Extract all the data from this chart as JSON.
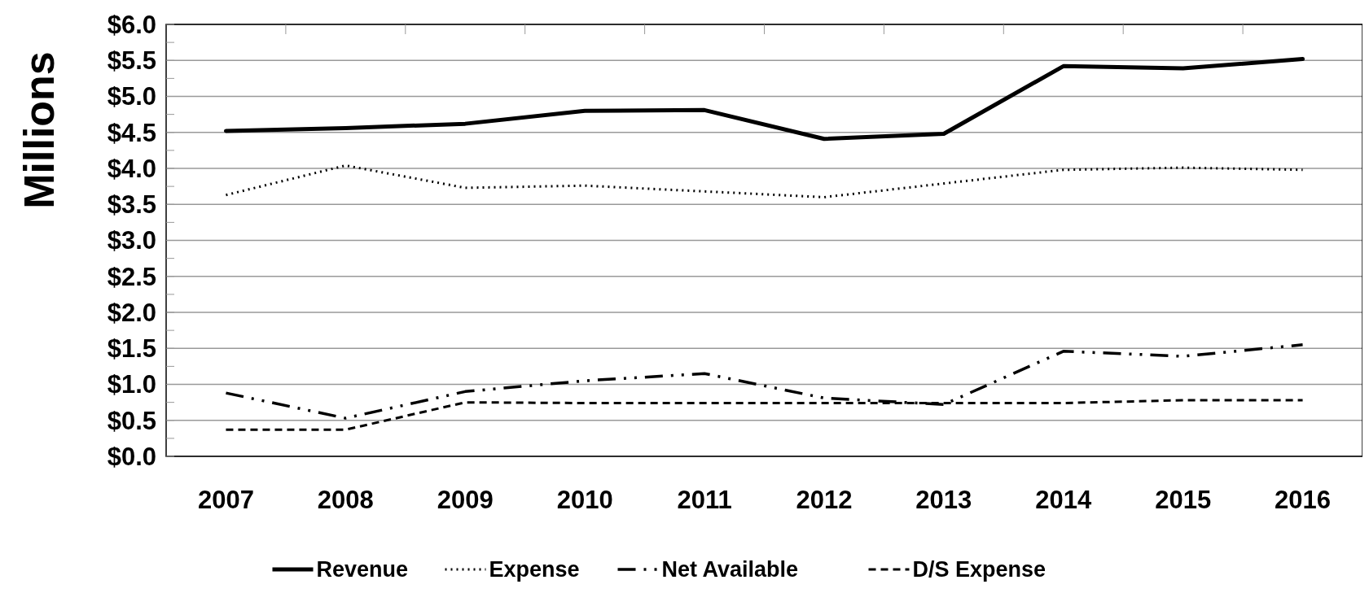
{
  "chart_data": {
    "type": "line",
    "ylabel": "Millions",
    "categories": [
      "2007",
      "2008",
      "2009",
      "2010",
      "2011",
      "2012",
      "2013",
      "2014",
      "2015",
      "2016"
    ],
    "series": [
      {
        "name": "Revenue",
        "color": "#000000",
        "line_style": "solid",
        "values": [
          4.52,
          4.56,
          4.62,
          4.8,
          4.81,
          4.41,
          4.48,
          5.42,
          5.39,
          5.52
        ]
      },
      {
        "name": "Expense",
        "color": "#000000",
        "line_style": "dotted",
        "values": [
          3.63,
          4.04,
          3.73,
          3.76,
          3.68,
          3.6,
          3.79,
          3.98,
          4.01,
          3.98
        ]
      },
      {
        "name": "Net Available",
        "color": "#000000",
        "line_style": "dashdot",
        "values": [
          0.88,
          0.53,
          0.9,
          1.05,
          1.15,
          0.81,
          0.72,
          1.46,
          1.39,
          1.55
        ]
      },
      {
        "name": "D/S Expense",
        "color": "#000000",
        "line_style": "dashed",
        "values": [
          0.37,
          0.37,
          0.75,
          0.74,
          0.74,
          0.74,
          0.74,
          0.74,
          0.78,
          0.78
        ]
      }
    ],
    "ylim": [
      0,
      6
    ],
    "yticks": [
      {
        "value": 0,
        "label": "$0.0"
      },
      {
        "value": 0.25,
        "label": null
      },
      {
        "value": 0.5,
        "label": "$0.5"
      },
      {
        "value": 0.75,
        "label": null
      },
      {
        "value": 1,
        "label": "$1.0"
      },
      {
        "value": 1.25,
        "label": null
      },
      {
        "value": 1.5,
        "label": "$1.5"
      },
      {
        "value": 1.75,
        "label": null
      },
      {
        "value": 2,
        "label": "$2.0"
      },
      {
        "value": 2.25,
        "label": null
      },
      {
        "value": 2.5,
        "label": "$2.5"
      },
      {
        "value": 2.75,
        "label": null
      },
      {
        "value": 3,
        "label": "$3.0"
      },
      {
        "value": 3.25,
        "label": null
      },
      {
        "value": 3.5,
        "label": "$3.5"
      },
      {
        "value": 3.75,
        "label": null
      },
      {
        "value": 4,
        "label": "$4.0"
      },
      {
        "value": 4.25,
        "label": null
      },
      {
        "value": 4.5,
        "label": "$4.5"
      },
      {
        "value": 4.75,
        "label": null
      },
      {
        "value": 5,
        "label": "$5.0"
      },
      {
        "value": 5.25,
        "label": null
      },
      {
        "value": 5.5,
        "label": "$5.5"
      },
      {
        "value": 5.75,
        "label": null
      },
      {
        "value": 6,
        "label": "$6.0"
      }
    ],
    "grid": "y",
    "legend": "bottom"
  }
}
